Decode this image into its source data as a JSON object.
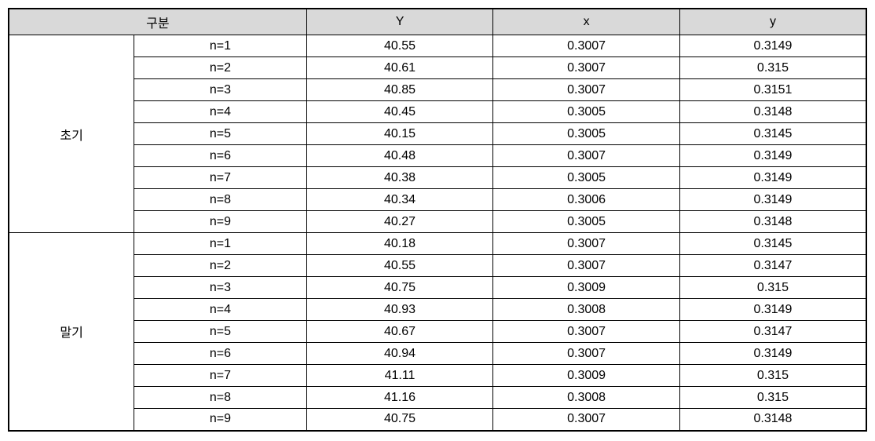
{
  "table": {
    "type": "table",
    "background_color": "#ffffff",
    "header_background": "#d9d9d9",
    "border_color": "#000000",
    "outer_border_width": 2,
    "inner_border_width": 1,
    "font_size": 16,
    "font_family": "Malgun Gothic",
    "headers": {
      "category": "구분",
      "col_Y": "Y",
      "col_x": "x",
      "col_y": "y"
    },
    "column_widths": {
      "group_label": 160,
      "n_label": 220,
      "data_col": 238
    },
    "groups": [
      {
        "label": "초기",
        "rows": [
          {
            "n": "n=1",
            "Y": "40.55",
            "x": "0.3007",
            "y": "0.3149"
          },
          {
            "n": "n=2",
            "Y": "40.61",
            "x": "0.3007",
            "y": "0.315"
          },
          {
            "n": "n=3",
            "Y": "40.85",
            "x": "0.3007",
            "y": "0.3151"
          },
          {
            "n": "n=4",
            "Y": "40.45",
            "x": "0.3005",
            "y": "0.3148"
          },
          {
            "n": "n=5",
            "Y": "40.15",
            "x": "0.3005",
            "y": "0.3145"
          },
          {
            "n": "n=6",
            "Y": "40.48",
            "x": "0.3007",
            "y": "0.3149"
          },
          {
            "n": "n=7",
            "Y": "40.38",
            "x": "0.3005",
            "y": "0.3149"
          },
          {
            "n": "n=8",
            "Y": "40.34",
            "x": "0.3006",
            "y": "0.3149"
          },
          {
            "n": "n=9",
            "Y": "40.27",
            "x": "0.3005",
            "y": "0.3148"
          }
        ]
      },
      {
        "label": "말기",
        "rows": [
          {
            "n": "n=1",
            "Y": "40.18",
            "x": "0.3007",
            "y": "0.3145"
          },
          {
            "n": "n=2",
            "Y": "40.55",
            "x": "0.3007",
            "y": "0.3147"
          },
          {
            "n": "n=3",
            "Y": "40.75",
            "x": "0.3009",
            "y": "0.315"
          },
          {
            "n": "n=4",
            "Y": "40.93",
            "x": "0.3008",
            "y": "0.3149"
          },
          {
            "n": "n=5",
            "Y": "40.67",
            "x": "0.3007",
            "y": "0.3147"
          },
          {
            "n": "n=6",
            "Y": "40.94",
            "x": "0.3007",
            "y": "0.3149"
          },
          {
            "n": "n=7",
            "Y": "41.11",
            "x": "0.3009",
            "y": "0.315"
          },
          {
            "n": "n=8",
            "Y": "41.16",
            "x": "0.3008",
            "y": "0.315"
          },
          {
            "n": "n=9",
            "Y": "40.75",
            "x": "0.3007",
            "y": "0.3148"
          }
        ]
      }
    ]
  }
}
